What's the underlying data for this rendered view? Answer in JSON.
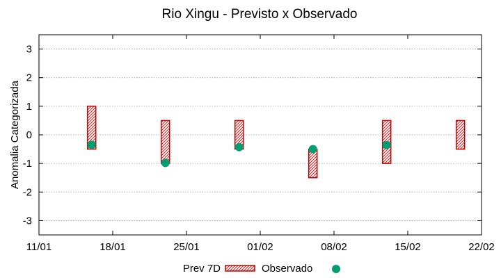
{
  "chart_data": {
    "type": "floating-bar-with-points",
    "title": "Rio Xingu - Previsto x Observado",
    "ylabel": "Anomalia Categorizada",
    "xlabel": "",
    "x_range": [
      "2023-01-11",
      "2023-02-22"
    ],
    "x_ticks": [
      {
        "date": "2023-01-11",
        "label": "11/01"
      },
      {
        "date": "2023-01-18",
        "label": "18/01"
      },
      {
        "date": "2023-01-25",
        "label": "25/01"
      },
      {
        "date": "2023-02-01",
        "label": "01/02"
      },
      {
        "date": "2023-02-08",
        "label": "08/02"
      },
      {
        "date": "2023-02-15",
        "label": "15/02"
      },
      {
        "date": "2023-02-22",
        "label": "22/02"
      }
    ],
    "ylim": [
      -3.5,
      3.5
    ],
    "y_ticks": [
      3,
      2,
      1,
      0,
      -1,
      -2,
      -3
    ],
    "y_tick_labels": [
      "3",
      "2",
      "1",
      "0",
      "-1",
      "-2",
      "-3"
    ],
    "grid": true,
    "legend_position": "bottom",
    "series": [
      {
        "name": "Prev 7D",
        "kind": "range-bar",
        "color": "#cc0000",
        "points": [
          {
            "date": "2023-01-16",
            "low": -0.5,
            "high": 1.0
          },
          {
            "date": "2023-01-23",
            "low": -1.0,
            "high": 0.5
          },
          {
            "date": "2023-01-30",
            "low": -0.5,
            "high": 0.5
          },
          {
            "date": "2023-02-06",
            "low": -1.5,
            "high": -0.5
          },
          {
            "date": "2023-02-13",
            "low": -1.0,
            "high": 0.5
          },
          {
            "date": "2023-02-20",
            "low": -0.5,
            "high": 0.5
          }
        ]
      },
      {
        "name": "Observado",
        "kind": "point",
        "color": "#009e73",
        "points": [
          {
            "date": "2023-01-16",
            "value": -0.35
          },
          {
            "date": "2023-01-23",
            "value": -0.98
          },
          {
            "date": "2023-01-30",
            "value": -0.43
          },
          {
            "date": "2023-02-06",
            "value": -0.5
          },
          {
            "date": "2023-02-13",
            "value": -0.36
          }
        ]
      }
    ]
  }
}
